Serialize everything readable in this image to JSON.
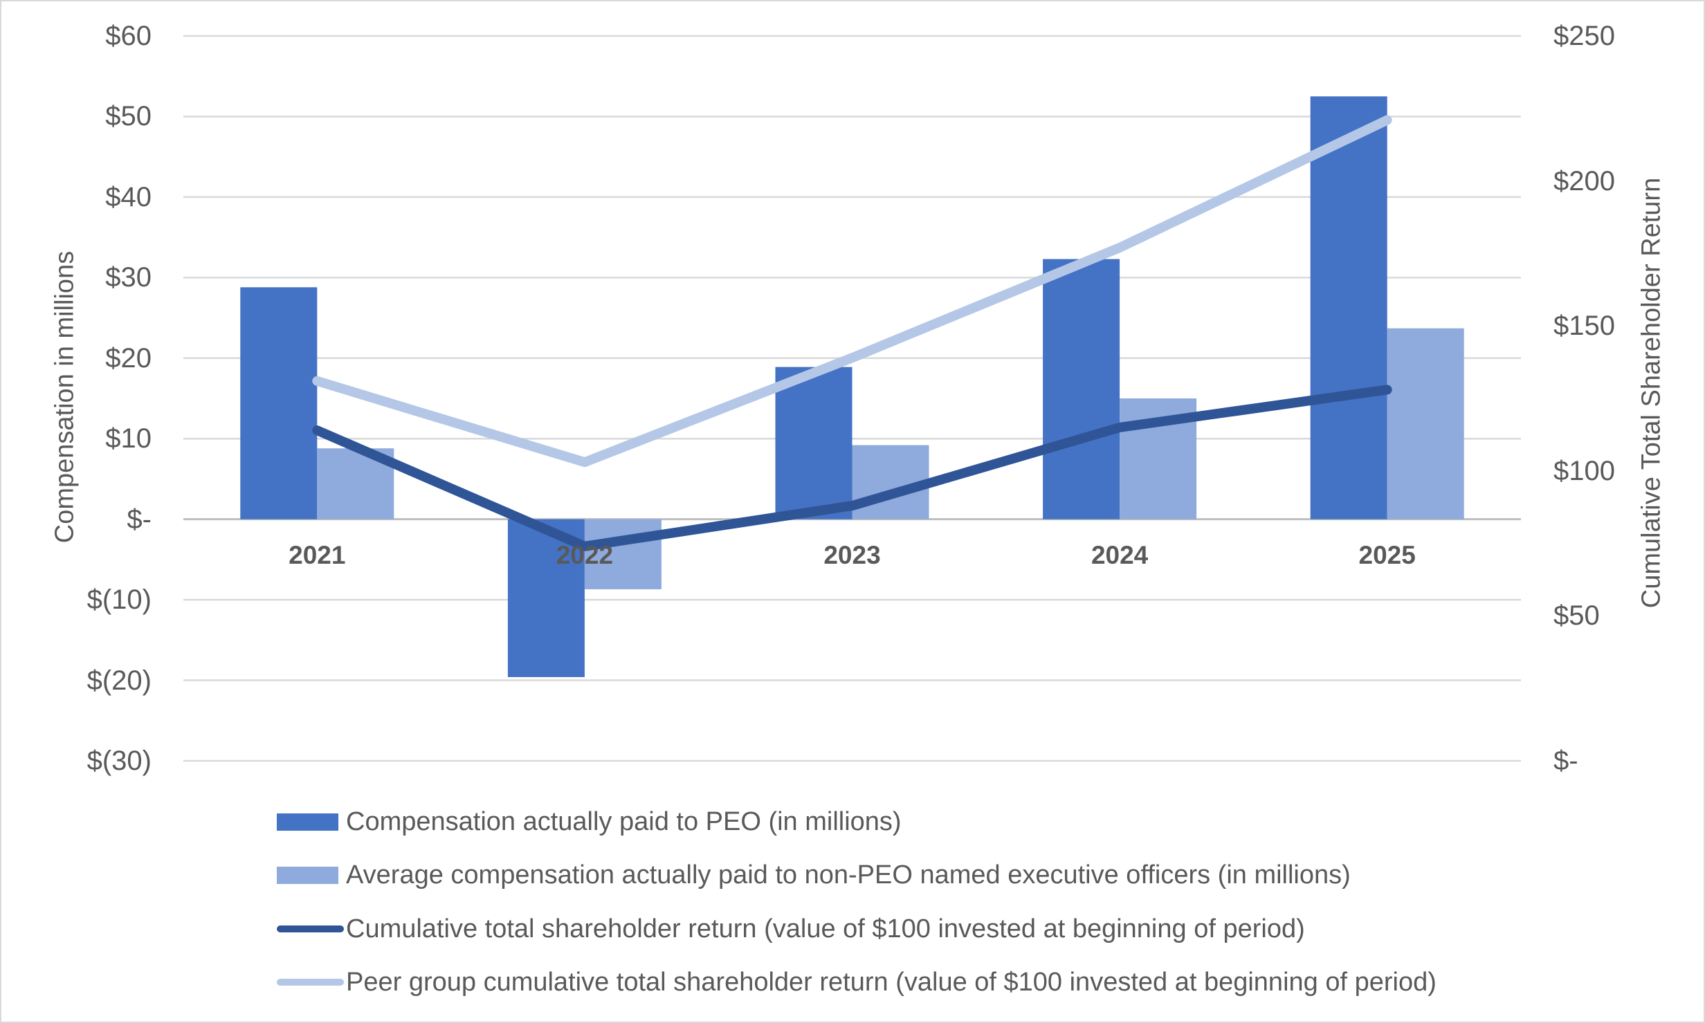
{
  "chart_data": {
    "type": "bar+line combo",
    "title": "",
    "categories": [
      "2021",
      "2022",
      "2023",
      "2024",
      "2025"
    ],
    "series": [
      {
        "id": "peo-compensation",
        "name": "Compensation actually paid to PEO (in millions)",
        "type": "bar",
        "axis": "left",
        "color": "#4472C4",
        "values": [
          28.8,
          -19.6,
          18.9,
          32.3,
          52.5
        ]
      },
      {
        "id": "non-peo-compensation",
        "name": "Average compensation actually paid to non-PEO named executive officers (in millions)",
        "type": "bar",
        "axis": "left",
        "color": "#8FAADC",
        "values": [
          8.8,
          -8.7,
          9.2,
          15,
          23.7
        ]
      },
      {
        "id": "company-tsr",
        "name": "Cumulative total shareholder return (value of $100 invested at beginning of period)",
        "type": "line",
        "axis": "right",
        "color": "#2F5597",
        "values": [
          114,
          74,
          88,
          115,
          128
        ]
      },
      {
        "id": "peer-group-tsr",
        "name": "Peer group cumulative total shareholder return (value of $100 invested at beginning of period)",
        "type": "line",
        "axis": "right",
        "color": "#B4C7E7",
        "values": [
          131,
          103,
          139,
          177,
          221
        ]
      }
    ],
    "left_axis": {
      "title": "Compensation in millions",
      "min": -30,
      "max": 60,
      "tick_step": 10,
      "tick_labels": [
        "$60",
        "$50",
        "$40",
        "$30",
        "$20",
        "$10",
        "$-",
        "$(10)",
        "$(20)",
        "$(30)"
      ]
    },
    "right_axis": {
      "title": "Cumulative Total Shareholder Return",
      "min": 0,
      "max": 250,
      "tick_step": 50,
      "tick_labels": [
        "$250",
        "$200",
        "$150",
        "$100",
        "$50",
        "$-"
      ]
    },
    "grid": true,
    "legend_position": "bottom-left",
    "colors": {
      "gridline": "#D9D9D9",
      "axis_line": "#BFBFBF",
      "text": "#595959",
      "background": "#FFFFFF",
      "border": "#D9D9D9"
    }
  }
}
